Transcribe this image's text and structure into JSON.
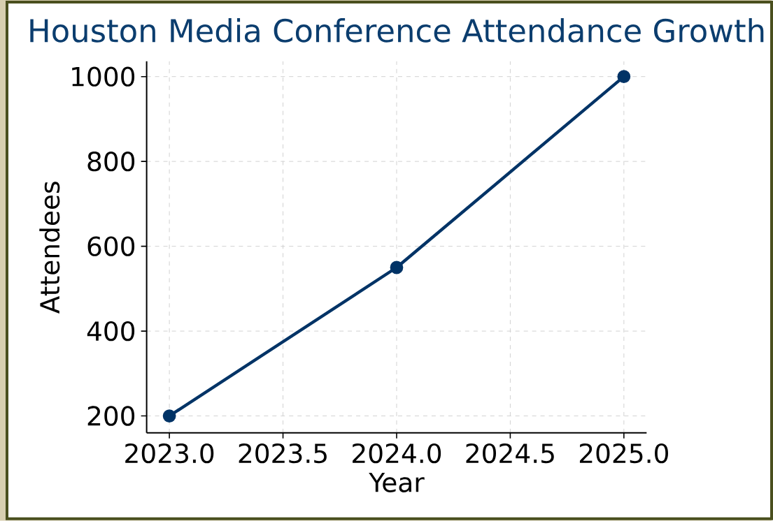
{
  "chart_data": {
    "type": "line",
    "title": "Houston Media Conference Attendance Growth",
    "xlabel": "Year",
    "ylabel": "Attendees",
    "x": [
      2023,
      2024,
      2025
    ],
    "series": [
      {
        "color": "#003366",
        "values": [
          200,
          550,
          1000
        ]
      }
    ],
    "xlim": [
      2022.9,
      2025.1
    ],
    "ylim": [
      160,
      1036
    ],
    "xticks": [
      {
        "value": 2023,
        "label": "2023.0"
      },
      {
        "value": 2023.5,
        "label": "2023.5"
      },
      {
        "value": 2024,
        "label": "2024.0"
      },
      {
        "value": 2024.5,
        "label": "2024.5"
      },
      {
        "value": 2025,
        "label": "2025.0"
      }
    ],
    "yticks": [
      200,
      400,
      600,
      800,
      1000
    ],
    "grid": true,
    "marker": "circle",
    "line_style": "solid"
  }
}
